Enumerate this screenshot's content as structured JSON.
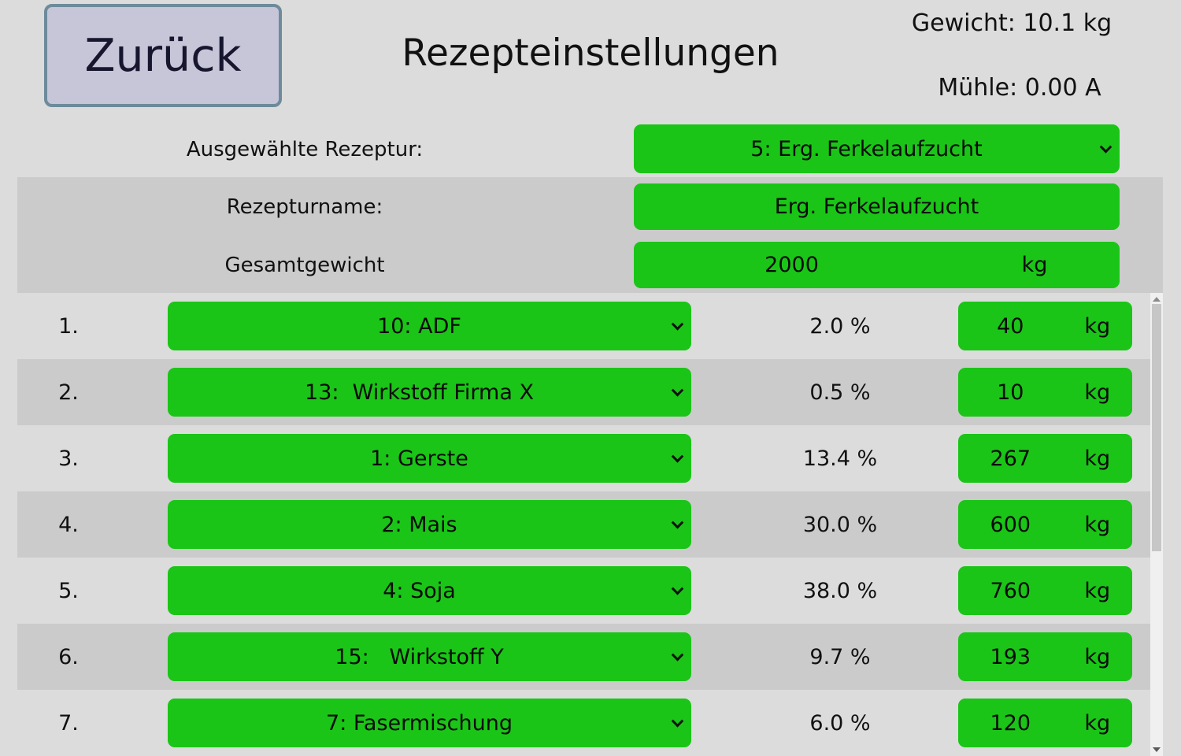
{
  "header": {
    "back_button": "Zurück",
    "title": "Rezepteinstellungen",
    "weight_readout": "Gewicht: 10.1 kg",
    "mill_readout": "Mühle: 0.00 A"
  },
  "recipe": {
    "selected_label": "Ausgewählte Rezeptur:",
    "selected_value": "5: Erg. Ferkelaufzucht",
    "name_label": "Rezepturname:",
    "name_value": "Erg. Ferkelaufzucht",
    "total_weight_label": "Gesamtgewicht",
    "total_weight_value": "2000",
    "total_weight_unit": "kg"
  },
  "rows": [
    {
      "index": "1.",
      "item": "10: ADF",
      "percent": "2.0 %",
      "amount": "40",
      "unit": "kg"
    },
    {
      "index": "2.",
      "item": "13:  Wirkstoff Firma X",
      "percent": "0.5 %",
      "amount": "10",
      "unit": "kg"
    },
    {
      "index": "3.",
      "item": "1: Gerste",
      "percent": "13.4 %",
      "amount": "267",
      "unit": "kg"
    },
    {
      "index": "4.",
      "item": "2: Mais",
      "percent": "30.0 %",
      "amount": "600",
      "unit": "kg"
    },
    {
      "index": "5.",
      "item": "4: Soja",
      "percent": "38.0 %",
      "amount": "760",
      "unit": "kg"
    },
    {
      "index": "6.",
      "item": "15:   Wirkstoff Y",
      "percent": "9.7 %",
      "amount": "193",
      "unit": "kg"
    },
    {
      "index": "7.",
      "item": "7: Fasermischung",
      "percent": "6.0 %",
      "amount": "120",
      "unit": "kg"
    }
  ],
  "icons": {
    "dropdown_chevron": "chevron-down",
    "scroll_up": "triangle-up",
    "scroll_down": "triangle-down"
  },
  "colors": {
    "accent_green": "#1ac517",
    "button_bg": "#c7c5d8",
    "button_border": "#6d8b9b",
    "band_gray": "#cbcbcb",
    "page_bg": "#dcdcdc"
  }
}
